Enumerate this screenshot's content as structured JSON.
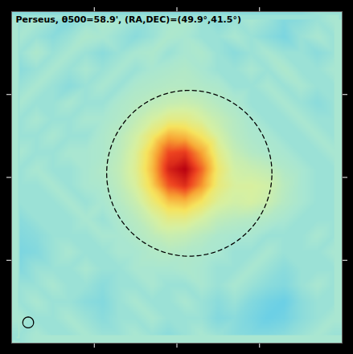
{
  "chart_data": {
    "type": "heatmap",
    "title": "Perseus, θ500=58.9', (RA,DEC)=(49.9°,41.5°)",
    "xlim": [
      -2,
      2
    ],
    "ylim": [
      -2,
      2
    ],
    "xticks": [
      -1,
      0,
      1
    ],
    "yticks": [
      -1,
      0,
      1
    ],
    "tick_labels": false,
    "grid": false,
    "zlim": [
      -1,
      6
    ],
    "cells": [
      [
        0,
        0.2,
        0,
        -0.3,
        0,
        0.3,
        0.2,
        0,
        0,
        0.2,
        0.3,
        0,
        -0.2,
        0,
        0.2,
        0,
        -0.3,
        -0.2,
        0,
        0.2
      ],
      [
        0.2,
        0,
        -0.2,
        0,
        0.3,
        0.2,
        0,
        -0.2,
        0,
        0.3,
        0.2,
        0,
        0,
        0.2,
        0,
        -0.2,
        -0.4,
        0,
        0.2,
        0
      ],
      [
        0,
        0.3,
        0,
        0.2,
        0,
        -0.2,
        0,
        0.2,
        0.3,
        0,
        0.2,
        0.3,
        0,
        -0.2,
        0,
        0.2,
        0,
        0,
        -0.2,
        0
      ],
      [
        -0.2,
        0,
        0.2,
        0,
        0.2,
        0,
        0.2,
        0,
        0.2,
        0.3,
        0.4,
        0.2,
        0,
        0,
        0.2,
        0,
        0.3,
        0,
        0,
        0.2
      ],
      [
        0,
        0.2,
        0,
        -0.2,
        0,
        0.2,
        0,
        0.3,
        0.4,
        0.5,
        0.5,
        0.4,
        0.3,
        0,
        0,
        0.2,
        0,
        0.2,
        0,
        0
      ],
      [
        0.2,
        0,
        0,
        0.2,
        0,
        0,
        0.3,
        0.5,
        0.7,
        0.9,
        1.0,
        0.8,
        0.5,
        0.3,
        0,
        0,
        0.2,
        0,
        -0.2,
        0
      ],
      [
        0,
        0.2,
        0,
        0,
        0.2,
        0.2,
        0.4,
        0.8,
        1.3,
        1.8,
        1.8,
        1.4,
        0.9,
        0.5,
        0.2,
        0,
        0,
        0.2,
        0,
        0
      ],
      [
        0,
        0,
        0.2,
        0,
        0,
        0.3,
        0.6,
        1.2,
        2.2,
        3.4,
        3.2,
        2.4,
        1.3,
        0.6,
        0.3,
        0.2,
        0,
        0,
        0.2,
        0
      ],
      [
        0.2,
        0,
        0,
        0.2,
        0.2,
        0.3,
        0.7,
        1.5,
        3.0,
        4.8,
        5.0,
        3.6,
        1.8,
        0.9,
        0.5,
        0.3,
        0.2,
        0,
        0,
        0.2
      ],
      [
        0,
        0.2,
        0,
        0,
        0.2,
        0.4,
        0.8,
        1.6,
        3.2,
        5.4,
        6.0,
        4.4,
        2.2,
        1.2,
        1.0,
        0.8,
        0.4,
        0.2,
        0,
        0
      ],
      [
        0,
        0,
        0.2,
        0,
        0.2,
        0.3,
        0.7,
        1.4,
        2.8,
        4.6,
        5.2,
        3.8,
        2.0,
        1.4,
        1.4,
        1.2,
        0.6,
        0.2,
        0,
        0
      ],
      [
        0,
        0,
        0,
        0.2,
        0,
        0.2,
        0.5,
        1.0,
        2.0,
        3.0,
        3.2,
        2.4,
        1.5,
        1.2,
        1.3,
        1.0,
        0.5,
        0.2,
        0,
        0
      ],
      [
        -0.2,
        0,
        0,
        0,
        0.2,
        0,
        0.3,
        0.6,
        1.2,
        1.8,
        1.8,
        1.3,
        0.8,
        0.6,
        0.5,
        0.4,
        0.2,
        0,
        0,
        0
      ],
      [
        -0.3,
        -0.2,
        0,
        0,
        0,
        0.2,
        0.2,
        0.4,
        0.7,
        1.0,
        0.9,
        0.6,
        0.3,
        0.2,
        0.2,
        0,
        0,
        0,
        0.2,
        0
      ],
      [
        -0.4,
        -0.3,
        0,
        0.2,
        0,
        0,
        0.2,
        0.2,
        0.4,
        0.5,
        0.4,
        0.3,
        0.2,
        0,
        0,
        0.2,
        0,
        0,
        0,
        0.2
      ],
      [
        -0.3,
        0,
        0,
        0,
        0.2,
        0,
        0,
        0.2,
        0.2,
        0.2,
        0.3,
        0.2,
        0,
        0,
        0.2,
        0,
        -0.2,
        0,
        0,
        0
      ],
      [
        0,
        0,
        0.2,
        0,
        0,
        -0.2,
        0,
        0,
        0.2,
        0,
        0,
        0.2,
        0,
        0.2,
        0,
        -0.2,
        -0.3,
        0,
        0.2,
        0
      ],
      [
        0,
        0.2,
        0,
        0,
        -0.2,
        -0.3,
        0,
        0.2,
        0,
        0,
        0.2,
        0,
        -0.2,
        0,
        -0.3,
        -0.5,
        -0.6,
        -0.2,
        0,
        0
      ],
      [
        0.2,
        0,
        0,
        0.2,
        0,
        -0.2,
        0,
        0,
        0.2,
        0,
        0,
        0,
        -0.3,
        -0.2,
        -0.4,
        -0.6,
        -0.5,
        -0.2,
        0,
        0.2
      ],
      [
        0,
        0.2,
        0,
        0,
        0.2,
        0,
        0,
        0.2,
        0,
        -0.2,
        0,
        0.2,
        0,
        -0.2,
        -0.3,
        -0.3,
        -0.2,
        0,
        0.2,
        0
      ]
    ],
    "circles": [
      {
        "x": 0.15,
        "y": 0.05,
        "r": 1,
        "line_style": "dashed"
      },
      {
        "x": -1.8,
        "y": -1.75,
        "r": 0.065,
        "line_style": "solid"
      }
    ]
  }
}
